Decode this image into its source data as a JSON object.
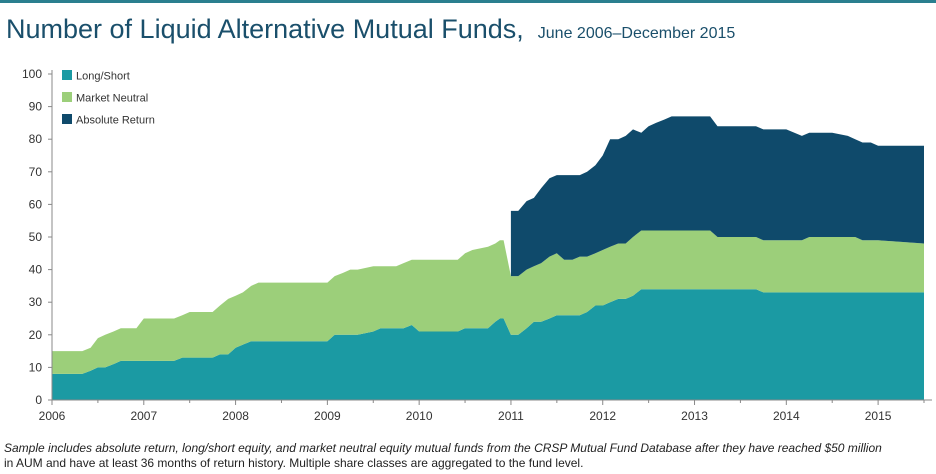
{
  "title": "Number of Liquid Alternative Mutual Funds,",
  "subtitle": "June 2006–December 2015",
  "caption": {
    "italic": "Sample includes absolute return, long/short equity, and market neutral equity mutual funds from the CRSP Mutual Fund Database after they have reached $50 million",
    "plain": "in AUM and have at least 36 months of return history. Multiple share classes are aggregated to the fund level."
  },
  "colors": {
    "long_short": "#1b9aa3",
    "market_neutral": "#9ccf7a",
    "absolute_return": "#0f4a6b",
    "title": "#1a4f6b",
    "axis": "#888888"
  },
  "chart_data": {
    "type": "area",
    "stacked": true,
    "x_tick_labels": [
      "2006",
      "2007",
      "2008",
      "2009",
      "2010",
      "2011",
      "2012",
      "2013",
      "2014",
      "2015"
    ],
    "y_tick_labels": [
      "0",
      "10",
      "20",
      "30",
      "40",
      "50",
      "60",
      "70",
      "80",
      "90",
      "100"
    ],
    "ylim": [
      0,
      100
    ],
    "xlim": [
      2006.0,
      2015.5
    ],
    "legend_position": "top-left",
    "x": [
      2006.0,
      2006.17,
      2006.33,
      2006.42,
      2006.5,
      2006.58,
      2006.67,
      2006.75,
      2006.83,
      2006.92,
      2007.0,
      2007.08,
      2007.25,
      2007.33,
      2007.42,
      2007.5,
      2007.58,
      2007.75,
      2007.83,
      2007.92,
      2008.0,
      2008.08,
      2008.17,
      2008.25,
      2008.33,
      2008.5,
      2008.75,
      2009.0,
      2009.08,
      2009.17,
      2009.25,
      2009.33,
      2009.5,
      2009.58,
      2009.75,
      2009.83,
      2009.92,
      2010.0,
      2010.17,
      2010.25,
      2010.33,
      2010.42,
      2010.5,
      2010.58,
      2010.75,
      2010.83,
      2010.88,
      2010.92,
      2011.0,
      2011.08,
      2011.17,
      2011.25,
      2011.33,
      2011.42,
      2011.5,
      2011.58,
      2011.67,
      2011.75,
      2011.83,
      2011.92,
      2012.0,
      2012.08,
      2012.17,
      2012.25,
      2012.33,
      2012.42,
      2012.5,
      2012.58,
      2012.67,
      2012.75,
      2012.83,
      2013.0,
      2013.17,
      2013.25,
      2013.5,
      2013.67,
      2013.75,
      2013.92,
      2014.0,
      2014.17,
      2014.25,
      2014.5,
      2014.67,
      2014.75,
      2014.83,
      2014.92,
      2015.0,
      2015.5
    ],
    "series": [
      {
        "name": "Long/Short",
        "values": [
          8,
          8,
          8,
          9,
          10,
          10,
          11,
          12,
          12,
          12,
          12,
          12,
          12,
          12,
          13,
          13,
          13,
          13,
          14,
          14,
          16,
          17,
          18,
          18,
          18,
          18,
          18,
          18,
          20,
          20,
          20,
          20,
          21,
          22,
          22,
          22,
          23,
          21,
          21,
          21,
          21,
          21,
          22,
          22,
          22,
          24,
          25,
          25,
          20,
          20,
          22,
          24,
          24,
          25,
          26,
          26,
          26,
          26,
          27,
          29,
          29,
          30,
          31,
          31,
          32,
          34,
          34,
          34,
          34,
          34,
          34,
          34,
          34,
          34,
          34,
          34,
          33,
          33,
          33,
          33,
          33,
          33,
          33,
          33,
          33,
          33,
          33,
          33
        ]
      },
      {
        "name": "Market Neutral",
        "values": [
          7,
          7,
          7,
          7,
          9,
          10,
          10,
          10,
          10,
          10,
          13,
          13,
          13,
          13,
          13,
          14,
          14,
          14,
          15,
          17,
          16,
          16,
          17,
          18,
          18,
          18,
          18,
          18,
          18,
          19,
          20,
          20,
          20,
          19,
          19,
          20,
          20,
          22,
          22,
          22,
          22,
          22,
          23,
          24,
          25,
          24,
          24,
          24,
          18,
          18,
          18,
          17,
          18,
          19,
          19,
          17,
          17,
          18,
          17,
          16,
          17,
          17,
          17,
          17,
          18,
          18,
          18,
          18,
          18,
          18,
          18,
          18,
          18,
          16,
          16,
          16,
          16,
          16,
          16,
          16,
          17,
          17,
          17,
          17,
          16,
          16,
          16,
          15
        ]
      },
      {
        "name": "Absolute Return",
        "values": [
          0,
          0,
          0,
          0,
          0,
          0,
          0,
          0,
          0,
          0,
          0,
          0,
          0,
          0,
          0,
          0,
          0,
          0,
          0,
          0,
          0,
          0,
          0,
          0,
          0,
          0,
          0,
          0,
          0,
          0,
          0,
          0,
          0,
          0,
          0,
          0,
          0,
          0,
          0,
          0,
          0,
          0,
          0,
          0,
          0,
          0,
          0,
          0,
          20,
          20,
          21,
          21,
          23,
          24,
          24,
          26,
          26,
          25,
          26,
          27,
          29,
          33,
          32,
          33,
          33,
          30,
          32,
          33,
          34,
          35,
          35,
          35,
          35,
          34,
          34,
          34,
          34,
          34,
          34,
          32,
          32,
          32,
          31,
          30,
          30,
          30,
          29,
          30
        ]
      }
    ]
  }
}
